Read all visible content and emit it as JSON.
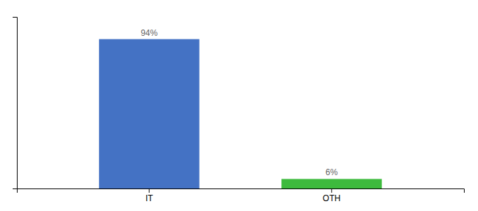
{
  "chart_data": {
    "type": "bar",
    "categories": [
      "IT",
      "OTH"
    ],
    "values": [
      94,
      6
    ],
    "value_labels": [
      "94%",
      "6%"
    ],
    "colors": [
      "#4472c4",
      "#3dba3d"
    ],
    "ylim": [
      0,
      108
    ],
    "data_labels": true,
    "tick_labels": "x"
  }
}
